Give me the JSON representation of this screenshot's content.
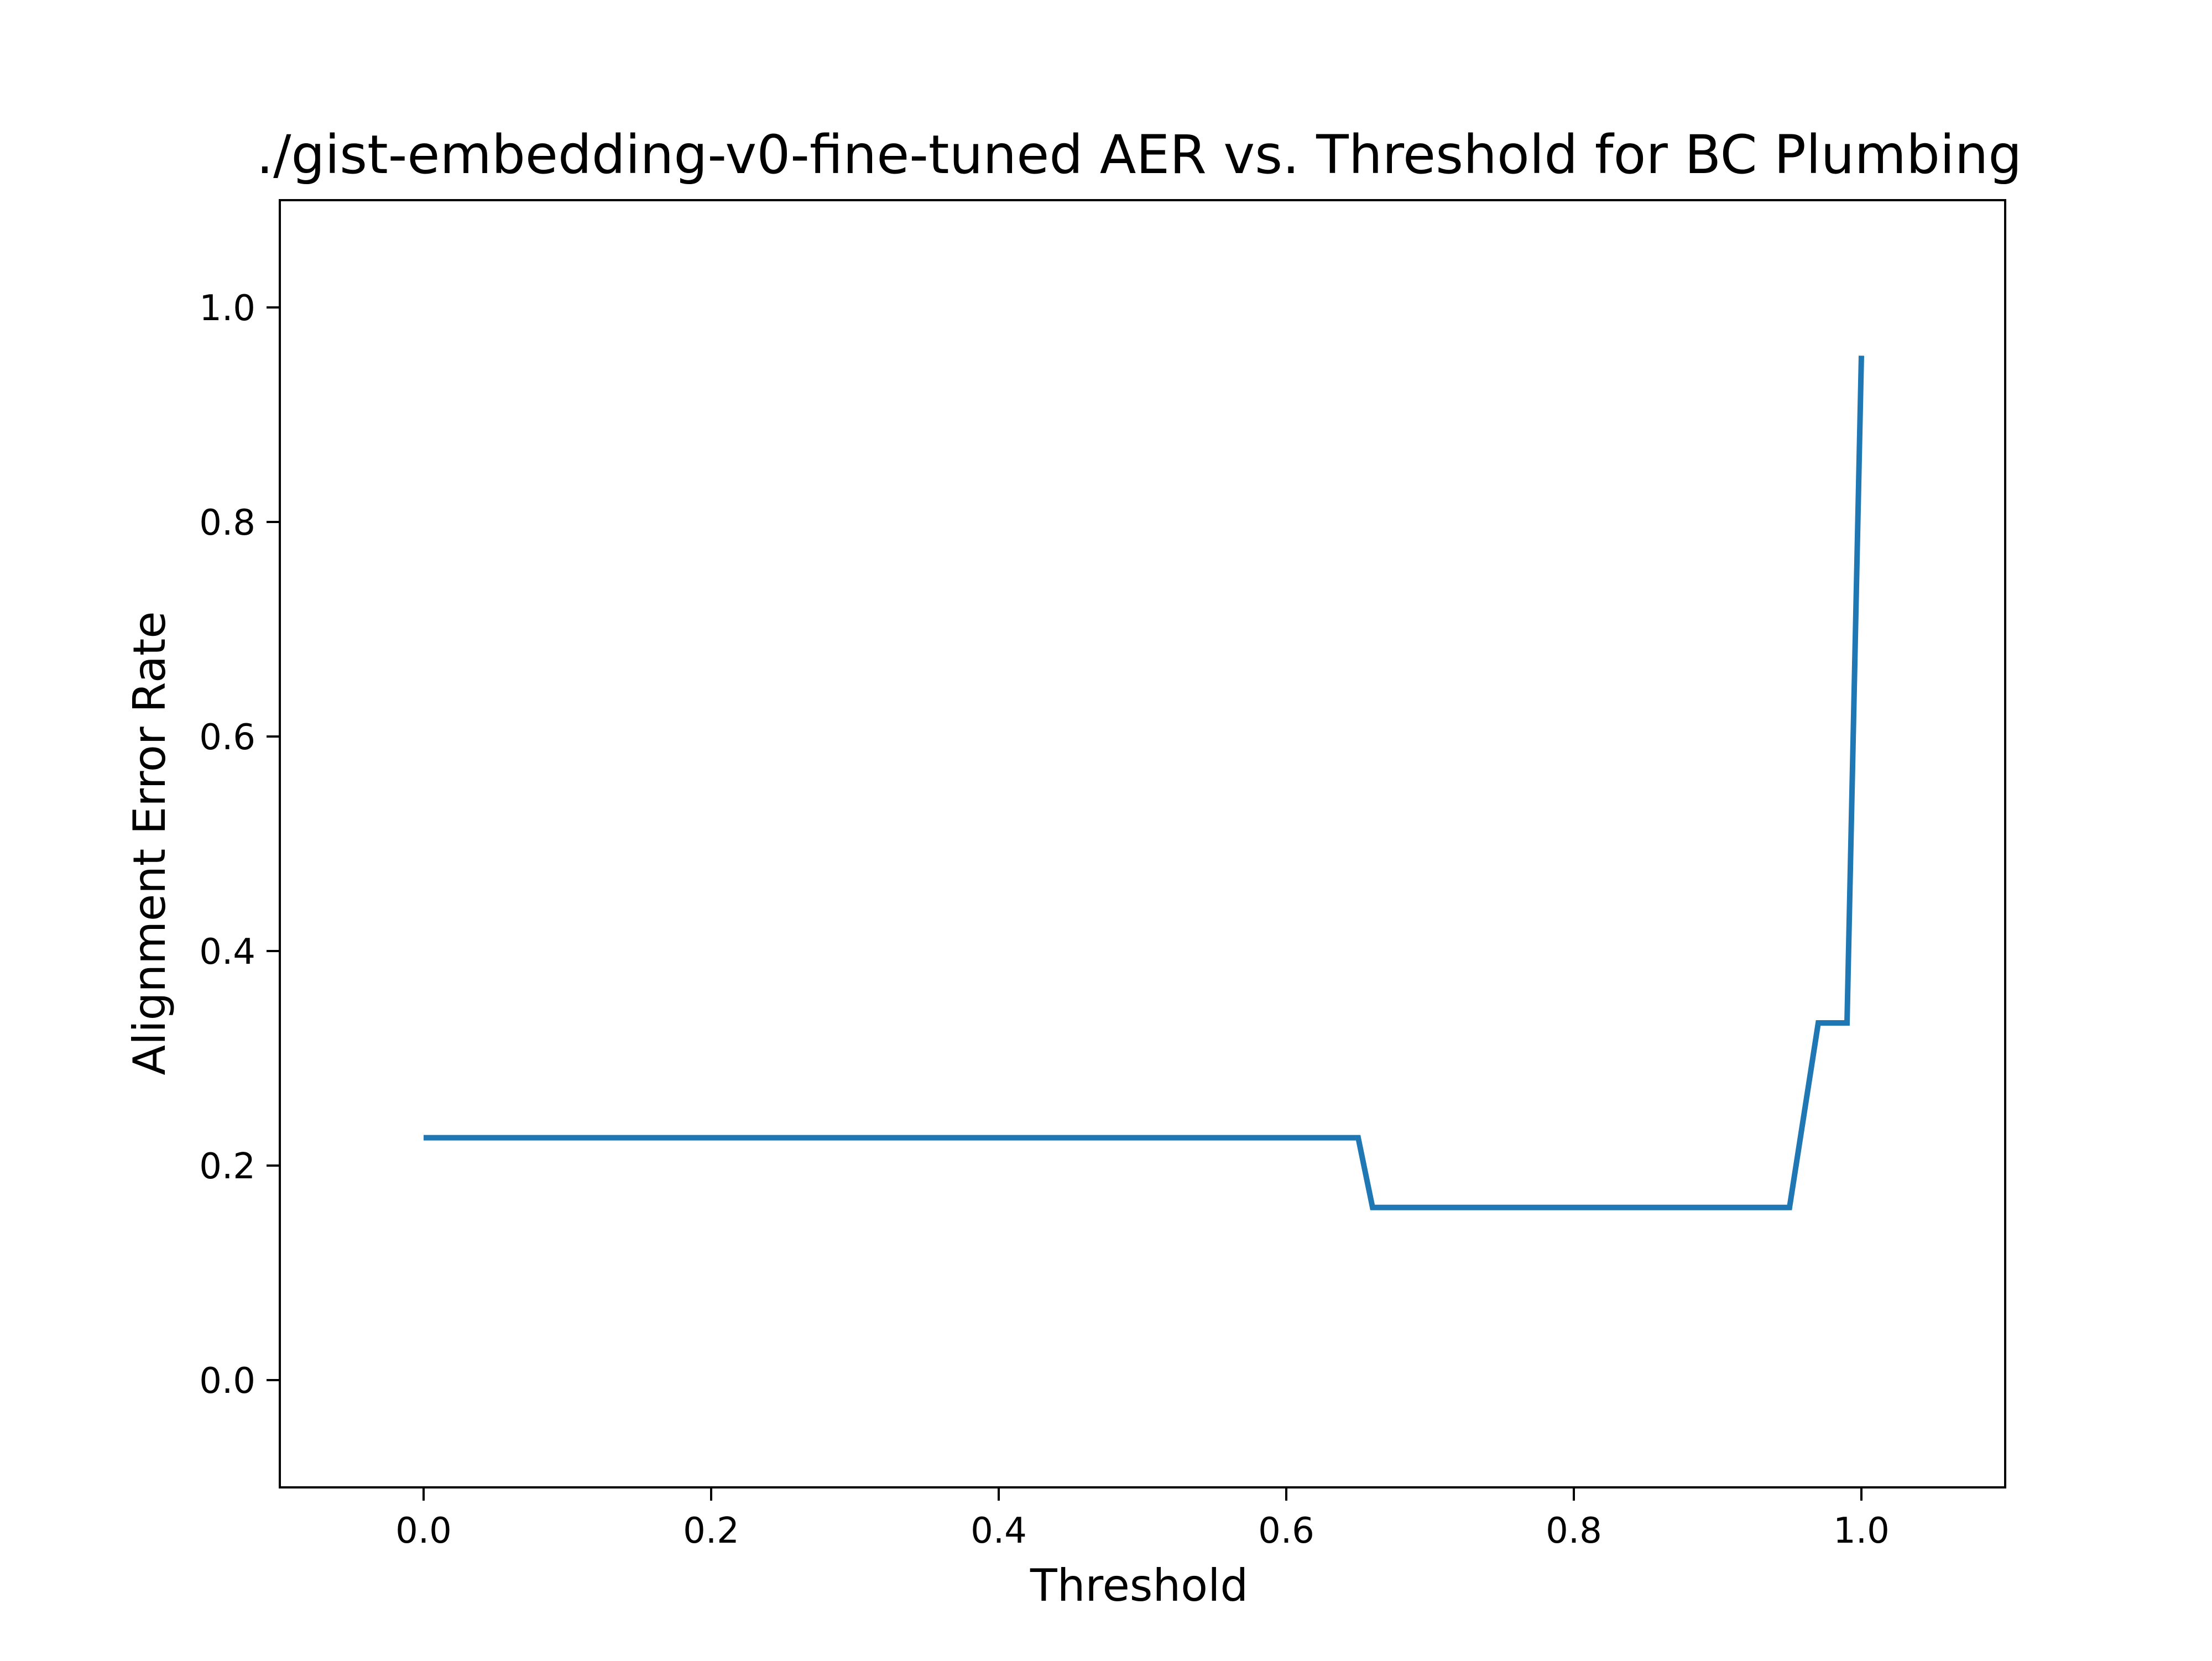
{
  "chart_data": {
    "type": "line",
    "title": "./gist-embedding-v0-fine-tuned AER vs. Threshold for BC Plumbing",
    "xlabel": "Threshold",
    "ylabel": "Alignment Error Rate",
    "xlim": [
      -0.1,
      1.1
    ],
    "ylim": [
      -0.1,
      1.1
    ],
    "xticks": [
      0.0,
      0.2,
      0.4,
      0.6,
      0.8,
      1.0
    ],
    "xtick_labels": [
      "0.0",
      "0.2",
      "0.4",
      "0.6",
      "0.8",
      "1.0"
    ],
    "yticks": [
      0.0,
      0.2,
      0.4,
      0.6,
      0.8,
      1.0
    ],
    "ytick_labels": [
      "0.0",
      "0.2",
      "0.4",
      "0.6",
      "0.8",
      "1.0"
    ],
    "grid": false,
    "legend": false,
    "series": [
      {
        "color": "#1f77b4",
        "x": [
          0.0,
          0.65,
          0.66,
          0.95,
          0.97,
          0.99,
          1.0
        ],
        "y": [
          0.226,
          0.226,
          0.161,
          0.161,
          0.333,
          0.333,
          0.955
        ]
      }
    ]
  }
}
